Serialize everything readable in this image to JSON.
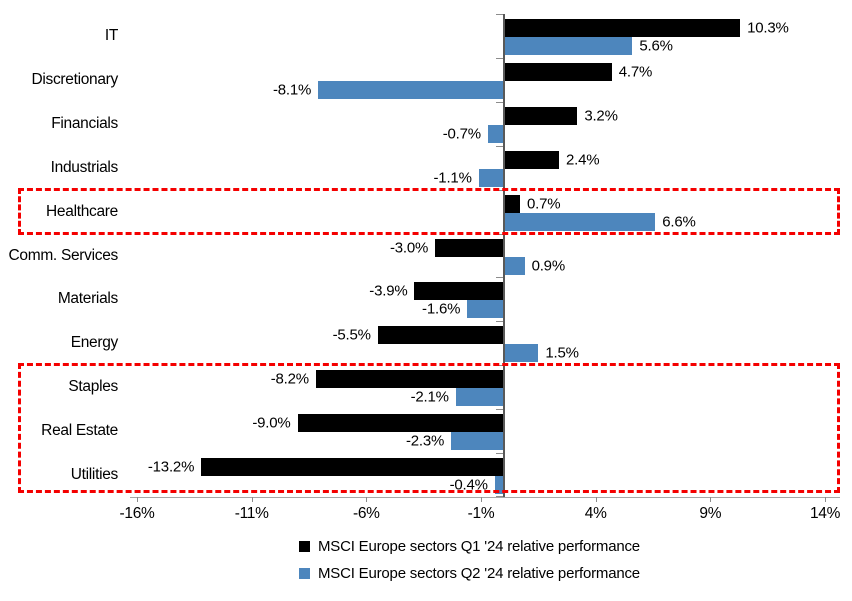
{
  "chart_data": {
    "type": "bar",
    "orientation": "horizontal",
    "title": "",
    "xlabel": "",
    "ylabel": "",
    "grid": false,
    "legend_position": "bottom",
    "categories": [
      "IT",
      "Discretionary",
      "Financials",
      "Industrials",
      "Healthcare",
      "Comm. Services",
      "Materials",
      "Energy",
      "Staples",
      "Real Estate",
      "Utilities"
    ],
    "series": [
      {
        "name": "MSCI Europe sectors Q1 '24 relative performance",
        "color": "#000000",
        "values": [
          10.3,
          4.7,
          3.2,
          2.4,
          0.7,
          -3.0,
          -3.9,
          -5.5,
          -8.2,
          -9.0,
          -13.2
        ],
        "labels": [
          "10.3%",
          "4.7%",
          "3.2%",
          "2.4%",
          "0.7%",
          "-3.0%",
          "-3.9%",
          "-5.5%",
          "-8.2%",
          "-9.0%",
          "-13.2%"
        ]
      },
      {
        "name": "MSCI Europe sectors Q2 '24 relative performance",
        "color": "#4d86bd",
        "values": [
          5.6,
          -8.1,
          -0.7,
          -1.1,
          6.6,
          0.9,
          -1.6,
          1.5,
          -2.1,
          -2.3,
          -0.4
        ],
        "labels": [
          "5.6%",
          "-8.1%",
          "-0.7%",
          "-1.1%",
          "6.6%",
          "0.9%",
          "-1.6%",
          "1.5%",
          "-2.1%",
          "-2.3%",
          "-0.4%"
        ]
      }
    ],
    "x_axis": {
      "min": -16,
      "max": 14,
      "tick_step": 5,
      "tick_labels": [
        "-16%",
        "-11%",
        "-6%",
        "-1%",
        "4%",
        "9%",
        "14%"
      ]
    },
    "highlight_boxes": [
      {
        "name": "healthcare-highlight",
        "color": "#f40000",
        "from_category": "Healthcare",
        "to_category": "Healthcare"
      },
      {
        "name": "defensives-highlight",
        "color": "#f40000",
        "from_category": "Staples",
        "to_category": "Utilities"
      }
    ],
    "colors": {
      "q1_bar": "#000000",
      "q2_bar": "#4d86bd",
      "highlight_border": "#f40000",
      "zero_axis_line": "#595959",
      "x_axis_line": "#a6a6a6",
      "tick": "#8c8c8c",
      "text": "#000000"
    }
  }
}
